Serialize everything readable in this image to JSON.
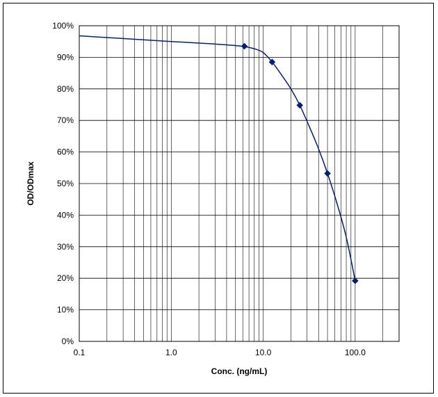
{
  "chart_data": {
    "type": "line",
    "title": "",
    "xlabel": "Conc. (ng/mL)",
    "ylabel": "OD/ODmax",
    "x_scale": "log",
    "xlim": [
      0.1,
      300
    ],
    "ylim": [
      0,
      1
    ],
    "x_tick_labels": [
      "0.1",
      "1.0",
      "10.0",
      "100.0"
    ],
    "y_tick_labels": [
      "0%",
      "10%",
      "20%",
      "30%",
      "40%",
      "50%",
      "60%",
      "70%",
      "80%",
      "90%",
      "100%"
    ],
    "grid": true,
    "legend": "none",
    "series": [
      {
        "x": [
          6.25,
          12.5,
          25,
          50,
          100
        ],
        "y": [
          0.935,
          0.885,
          0.748,
          0.532,
          0.192
        ],
        "fit_curve": {
          "x": [
            0.1,
            1,
            3,
            5,
            6.25,
            8,
            10,
            12.5,
            16,
            20,
            25,
            32,
            40,
            50,
            63,
            80,
            100
          ],
          "y": [
            0.968,
            0.95,
            0.942,
            0.937,
            0.934,
            0.927,
            0.915,
            0.885,
            0.842,
            0.8,
            0.748,
            0.678,
            0.61,
            0.532,
            0.44,
            0.33,
            0.192
          ]
        }
      }
    ],
    "colors": {
      "series": "#001f7f",
      "grid": "#000000"
    }
  }
}
